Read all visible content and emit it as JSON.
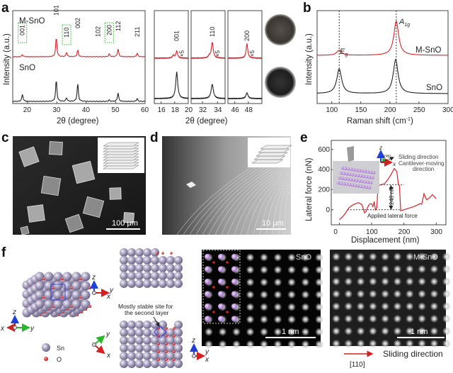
{
  "panels": {
    "a": "a",
    "b": "b",
    "c": "c",
    "d": "d",
    "e": "e",
    "f": "f"
  },
  "colors": {
    "m_sno": "#d9232d",
    "sno": "#222222",
    "sio_axis_z": "#1f3fd8",
    "axis_y": "#2bb52b",
    "axis_x": "#d32020",
    "sn_atom": "#a9a2c0",
    "o_atom": "#d42020"
  },
  "chart_data": [
    {
      "type": "line",
      "panel": "a",
      "xlabel": "2θ (degree)",
      "ylabel": "Intensity (a.u.)",
      "xlim": [
        15,
        60
      ],
      "xticks": [
        "20",
        "30",
        "40",
        "50",
        "60"
      ],
      "series": [
        {
          "name": "M-SnO",
          "color": "#d9232d",
          "peaks": [
            [
              18.3,
              3
            ],
            [
              29.8,
              27
            ],
            [
              33.3,
              6
            ],
            [
              37.1,
              9
            ],
            [
              47.8,
              4
            ],
            [
              50.8,
              11
            ],
            [
              57.3,
              5
            ]
          ]
        },
        {
          "name": "SnO",
          "color": "#222222",
          "peaks": [
            [
              18.3,
              10
            ],
            [
              29.8,
              30
            ],
            [
              33.3,
              5
            ],
            [
              37.1,
              25
            ],
            [
              47.8,
              2
            ],
            [
              50.8,
              12
            ],
            [
              57.3,
              4
            ]
          ]
        }
      ],
      "peak_labels": [
        "001",
        "101",
        "110",
        "002",
        "102",
        "200",
        "112",
        "211"
      ],
      "boxed_labels": [
        "001",
        "110",
        "200"
      ]
    },
    {
      "type": "line",
      "panel": "a-zoom",
      "xlabel": "2θ (degree)",
      "subplots": [
        {
          "xlim": [
            15,
            20
          ],
          "xticks": [
            "16",
            "18",
            "20"
          ],
          "label": "001",
          "scale": "×5",
          "red_peaks": [
            [
              17.8,
              4
            ],
            [
              18.3,
              10
            ]
          ],
          "black_peaks": [
            [
              18.3,
              37
            ]
          ]
        },
        {
          "xlim": [
            30.5,
            35
          ],
          "xticks": [
            "32",
            "34"
          ],
          "label": "110",
          "scale": "×5",
          "red_peaks": [
            [
              32.9,
              3
            ],
            [
              33.3,
              22
            ]
          ],
          "black_peaks": [
            [
              33.3,
              20
            ]
          ]
        },
        {
          "xlim": [
            45,
            50
          ],
          "xticks": [
            "46",
            "48"
          ],
          "label": "200",
          "scale": "×5",
          "red_peaks": [
            [
              47.8,
              20
            ]
          ],
          "black_peaks": [
            [
              47.8,
              8
            ]
          ]
        }
      ]
    },
    {
      "type": "line",
      "panel": "b",
      "xlabel": "Raman shift (cm",
      "xlabel_sup": "-1",
      "xlabel_end": ")",
      "ylabel": "Intensity (a.u.)",
      "xlim": [
        75,
        300
      ],
      "xticks": [
        "100",
        "150",
        "200",
        "250",
        "300"
      ],
      "mode_labels": {
        "eg": "E",
        "eg_sub": "g",
        "a1g": "A",
        "a1g_sub": "1g"
      },
      "dashed_at": [
        113,
        211
      ],
      "series": [
        {
          "name": "M-SnO",
          "color": "#d9232d",
          "peaks": [
            [
              113,
              7
            ],
            [
              211,
              48
            ]
          ]
        },
        {
          "name": "SnO",
          "color": "#222222",
          "peaks": [
            [
              113,
              35
            ],
            [
              210,
              48
            ]
          ]
        }
      ]
    },
    {
      "type": "line",
      "panel": "e",
      "xlabel": "Displacement (nm)",
      "ylabel": "Lateral force (nN)",
      "xlim": [
        -25,
        330
      ],
      "ylim": [
        -150,
        690
      ],
      "xticks": [
        "0",
        "100",
        "200",
        "300"
      ],
      "yticks": [
        "0",
        "200",
        "400",
        "600"
      ],
      "x": [
        0,
        10,
        20,
        30,
        40,
        50,
        60,
        70,
        78,
        82,
        90,
        95,
        100,
        104,
        108,
        112,
        116,
        120,
        130,
        140,
        150,
        160,
        170,
        178,
        183,
        186,
        190,
        200,
        210,
        220,
        230,
        240,
        250,
        255,
        262,
        270,
        280,
        288,
        300
      ],
      "y": [
        -100,
        -70,
        -30,
        20,
        45,
        60,
        70,
        50,
        -30,
        -20,
        40,
        60,
        60,
        30,
        80,
        0,
        20,
        240,
        250,
        260,
        300,
        350,
        410,
        380,
        250,
        240,
        -10,
        0,
        10,
        20,
        30,
        45,
        60,
        55,
        160,
        100,
        120,
        150,
        110
      ],
      "annotations": {
        "force": "~ 248 nN",
        "applied": "Applied lateral force",
        "sliding": "Sliding direction",
        "cantilever1": "Cantilever-moving",
        "cantilever2": "direction",
        "angle": "45°",
        "z": "z",
        "y": "y",
        "x": "x"
      }
    }
  ],
  "texts": {
    "m_sno": "M-SnO",
    "sno": "SnO",
    "scale_c": "100 μm",
    "scale_d": "10 μm",
    "scale_stem": "1 nm",
    "stable_site_1": "Mostly stable site for",
    "stable_site_2": "the second layer",
    "legend_sn": "Sn",
    "legend_o": "O",
    "sliding": "Sliding direction",
    "direction_110": "[110]",
    "z": "z",
    "y": "y",
    "x": "x"
  }
}
